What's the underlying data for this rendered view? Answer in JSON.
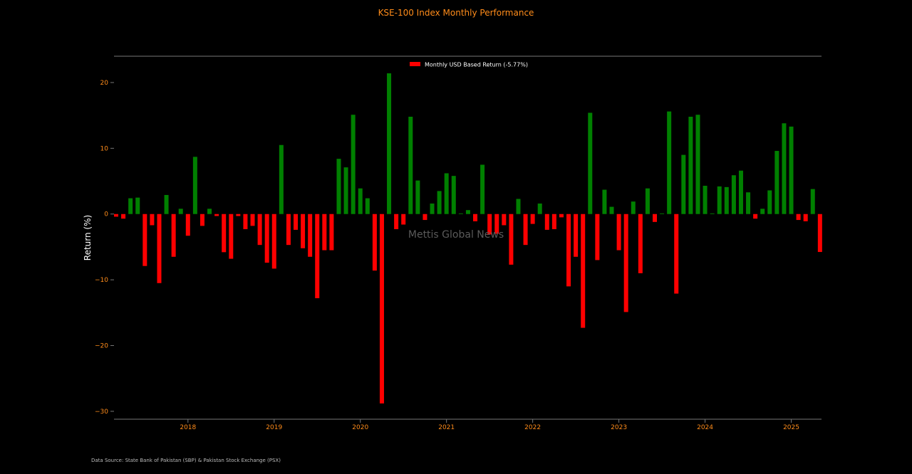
{
  "chart_data": {
    "type": "bar",
    "title": "KSE-100 Index Monthly Performance",
    "ylabel": "Return (%)",
    "xlabel": "",
    "ylim": [
      -31.2,
      24
    ],
    "yticks": [
      20,
      10,
      0,
      -10,
      -20,
      -30
    ],
    "xtick_labels": [
      "2018",
      "2019",
      "2020",
      "2021",
      "2022",
      "2023",
      "2024",
      "2025"
    ],
    "x_start": "2017-03",
    "legend": {
      "label": "Monthly USD Based Return (-5.77%)",
      "position": "top-center"
    },
    "watermark": "Mettis Global News",
    "source_note": "Data Source: State Bank of Pakistan (SBP) & Pakistan Stock Exchange (PSX)",
    "colors": {
      "positive": "#008000",
      "negative": "#ff0000",
      "title": "#ff8c1a",
      "tick": "#ff8c1a",
      "axis": "#777777",
      "text": "#ffffff",
      "watermark": "#5a5a5a"
    },
    "values": [
      -0.4,
      -0.7,
      2.4,
      2.5,
      -7.9,
      -1.7,
      -10.5,
      2.9,
      -6.5,
      0.8,
      -3.3,
      8.7,
      -1.8,
      0.8,
      -0.3,
      -5.8,
      -6.8,
      -0.3,
      -2.3,
      -1.8,
      -4.7,
      -7.4,
      -8.3,
      10.5,
      -4.7,
      -2.4,
      -5.2,
      -6.5,
      -12.8,
      -5.5,
      -5.5,
      8.4,
      7.1,
      15.1,
      3.9,
      2.4,
      -8.6,
      -28.8,
      21.4,
      -2.3,
      -1.6,
      14.8,
      5.1,
      -0.9,
      1.6,
      3.5,
      6.2,
      5.8,
      0.1,
      0.6,
      -1.1,
      7.5,
      -3.1,
      -3.0,
      -1.7,
      -7.7,
      2.3,
      -4.7,
      -1.5,
      1.6,
      -2.4,
      -2.3,
      -0.5,
      -11.0,
      -6.5,
      -17.3,
      15.4,
      -7.0,
      3.7,
      1.1,
      -5.5,
      -14.9,
      1.9,
      -9.0,
      3.9,
      -1.2,
      0.1,
      15.6,
      -12.1,
      9.0,
      14.8,
      15.1,
      4.3,
      0.1,
      4.2,
      4.1,
      5.9,
      6.6,
      3.3,
      -0.7,
      0.8,
      3.6,
      9.6,
      13.8,
      13.3,
      -0.9,
      -1.1,
      3.8,
      -5.77
    ]
  }
}
